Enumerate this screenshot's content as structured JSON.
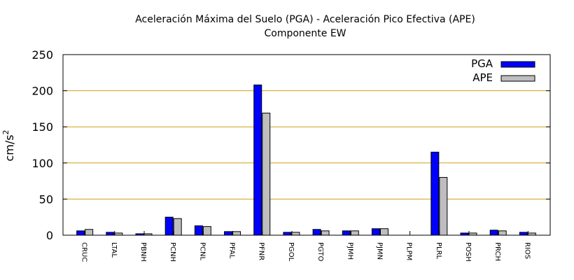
{
  "chart_data": {
    "type": "bar",
    "title": "Aceleración Máxima del Suelo (PGA) -  Aceleración Pico Efectiva (APE)",
    "subtitle": "Componente EW",
    "ylabel_base": "cm/s",
    "ylabel_exp": "2",
    "xlabel": "",
    "ylim": [
      0,
      250
    ],
    "yticks": [
      0,
      50,
      100,
      150,
      200,
      250
    ],
    "grid": true,
    "legend_position": "top-right",
    "categories": [
      "CRUC",
      "LTAL",
      "PBNH",
      "PCNH",
      "PCNL",
      "PFAL",
      "PFNR",
      "PGOL",
      "PGTO",
      "PJMH",
      "PJMN",
      "PLPM",
      "PLRL",
      "POSH",
      "PRCH",
      "RIOS"
    ],
    "series": [
      {
        "name": "PGA",
        "color": "#0000ff",
        "values": [
          6,
          4,
          2,
          25,
          13,
          5,
          208,
          4,
          8,
          6,
          9,
          0,
          115,
          3,
          7,
          4
        ]
      },
      {
        "name": "APE",
        "color": "#bebebe",
        "values": [
          8,
          3,
          2,
          23,
          12,
          5,
          169,
          4,
          6,
          6,
          9,
          0,
          80,
          3,
          6,
          3
        ]
      }
    ],
    "gridline_color": "#d4a017"
  }
}
